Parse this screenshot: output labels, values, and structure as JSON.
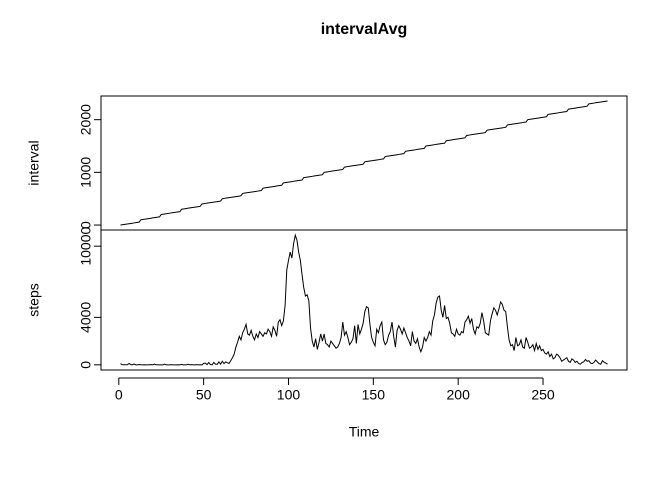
{
  "chart_data": {
    "type": "line",
    "title": "intervalAvg",
    "xlabel": "Time",
    "xlim": [
      -10.48,
      299.48
    ],
    "xticks": [
      0,
      50,
      100,
      150,
      200,
      250
    ],
    "color": "#000000",
    "x": [
      1,
      2,
      3,
      4,
      5,
      6,
      7,
      8,
      9,
      10,
      11,
      12,
      13,
      14,
      15,
      16,
      17,
      18,
      19,
      20,
      21,
      22,
      23,
      24,
      25,
      26,
      27,
      28,
      29,
      30,
      31,
      32,
      33,
      34,
      35,
      36,
      37,
      38,
      39,
      40,
      41,
      42,
      43,
      44,
      45,
      46,
      47,
      48,
      49,
      50,
      51,
      52,
      53,
      54,
      55,
      56,
      57,
      58,
      59,
      60,
      61,
      62,
      63,
      64,
      65,
      66,
      67,
      68,
      69,
      70,
      71,
      72,
      73,
      74,
      75,
      76,
      77,
      78,
      79,
      80,
      81,
      82,
      83,
      84,
      85,
      86,
      87,
      88,
      89,
      90,
      91,
      92,
      93,
      94,
      95,
      96,
      97,
      98,
      99,
      100,
      101,
      102,
      103,
      104,
      105,
      106,
      107,
      108,
      109,
      110,
      111,
      112,
      113,
      114,
      115,
      116,
      117,
      118,
      119,
      120,
      121,
      122,
      123,
      124,
      125,
      126,
      127,
      128,
      129,
      130,
      131,
      132,
      133,
      134,
      135,
      136,
      137,
      138,
      139,
      140,
      141,
      142,
      143,
      144,
      145,
      146,
      147,
      148,
      149,
      150,
      151,
      152,
      153,
      154,
      155,
      156,
      157,
      158,
      159,
      160,
      161,
      162,
      163,
      164,
      165,
      166,
      167,
      168,
      169,
      170,
      171,
      172,
      173,
      174,
      175,
      176,
      177,
      178,
      179,
      180,
      181,
      182,
      183,
      184,
      185,
      186,
      187,
      188,
      189,
      190,
      191,
      192,
      193,
      194,
      195,
      196,
      197,
      198,
      199,
      200,
      201,
      202,
      203,
      204,
      205,
      206,
      207,
      208,
      209,
      210,
      211,
      212,
      213,
      214,
      215,
      216,
      217,
      218,
      219,
      220,
      221,
      222,
      223,
      224,
      225,
      226,
      227,
      228,
      229,
      230,
      231,
      232,
      233,
      234,
      235,
      236,
      237,
      238,
      239,
      240,
      241,
      242,
      243,
      244,
      245,
      246,
      247,
      248,
      249,
      250,
      251,
      252,
      253,
      254,
      255,
      256,
      257,
      258,
      259,
      260,
      261,
      262,
      263,
      264,
      265,
      266,
      267,
      268,
      269,
      270,
      271,
      272,
      273,
      274,
      275,
      276,
      277,
      278,
      279,
      280,
      281,
      282,
      283,
      284,
      285,
      286,
      287,
      288
    ],
    "panels": [
      {
        "ylabel": "interval",
        "ylim": [
          -94,
          2449
        ],
        "yticks": [
          0,
          1000,
          2000
        ],
        "values": [
          0,
          5,
          10,
          15,
          20,
          25,
          30,
          35,
          40,
          45,
          50,
          55,
          100,
          105,
          110,
          115,
          120,
          125,
          130,
          135,
          140,
          145,
          150,
          155,
          200,
          205,
          210,
          215,
          220,
          225,
          230,
          235,
          240,
          245,
          250,
          255,
          300,
          305,
          310,
          315,
          320,
          325,
          330,
          335,
          340,
          345,
          350,
          355,
          400,
          405,
          410,
          415,
          420,
          425,
          430,
          435,
          440,
          445,
          450,
          455,
          500,
          505,
          510,
          515,
          520,
          525,
          530,
          535,
          540,
          545,
          550,
          555,
          600,
          605,
          610,
          615,
          620,
          625,
          630,
          635,
          640,
          645,
          650,
          655,
          700,
          705,
          710,
          715,
          720,
          725,
          730,
          735,
          740,
          745,
          750,
          755,
          800,
          805,
          810,
          815,
          820,
          825,
          830,
          835,
          840,
          845,
          850,
          855,
          900,
          905,
          910,
          915,
          920,
          925,
          930,
          935,
          940,
          945,
          950,
          955,
          1000,
          1005,
          1010,
          1015,
          1020,
          1025,
          1030,
          1035,
          1040,
          1045,
          1050,
          1055,
          1100,
          1105,
          1110,
          1115,
          1120,
          1125,
          1130,
          1135,
          1140,
          1145,
          1150,
          1155,
          1200,
          1205,
          1210,
          1215,
          1220,
          1225,
          1230,
          1235,
          1240,
          1245,
          1250,
          1255,
          1300,
          1305,
          1310,
          1315,
          1320,
          1325,
          1330,
          1335,
          1340,
          1345,
          1350,
          1355,
          1400,
          1405,
          1410,
          1415,
          1420,
          1425,
          1430,
          1435,
          1440,
          1445,
          1450,
          1455,
          1500,
          1505,
          1510,
          1515,
          1520,
          1525,
          1530,
          1535,
          1540,
          1545,
          1550,
          1555,
          1600,
          1605,
          1610,
          1615,
          1620,
          1625,
          1630,
          1635,
          1640,
          1645,
          1650,
          1655,
          1700,
          1705,
          1710,
          1715,
          1720,
          1725,
          1730,
          1735,
          1740,
          1745,
          1750,
          1755,
          1800,
          1805,
          1810,
          1815,
          1820,
          1825,
          1830,
          1835,
          1840,
          1845,
          1850,
          1855,
          1900,
          1905,
          1910,
          1915,
          1920,
          1925,
          1930,
          1935,
          1940,
          1945,
          1950,
          1955,
          2000,
          2005,
          2010,
          2015,
          2020,
          2025,
          2030,
          2035,
          2040,
          2045,
          2050,
          2055,
          2100,
          2105,
          2110,
          2115,
          2120,
          2125,
          2130,
          2135,
          2140,
          2145,
          2150,
          2155,
          2200,
          2205,
          2210,
          2215,
          2220,
          2225,
          2230,
          2235,
          2240,
          2245,
          2250,
          2255,
          2300,
          2305,
          2310,
          2315,
          2320,
          2325,
          2330,
          2335,
          2340,
          2345,
          2350,
          2355
        ]
      },
      {
        "ylabel": "steps",
        "ylim": [
          -437,
          11364
        ],
        "yticks": [
          0,
          4000,
          10000
        ],
        "values": [
          91,
          18,
          7,
          8,
          4,
          111,
          28,
          0,
          78,
          0,
          0,
          25,
          9,
          0,
          10,
          0,
          0,
          10,
          20,
          0,
          65,
          5,
          10,
          0,
          0,
          0,
          58,
          0,
          0,
          0,
          20,
          0,
          0,
          0,
          5,
          0,
          35,
          0,
          0,
          10,
          50,
          0,
          20,
          0,
          0,
          12,
          0,
          3,
          0,
          120,
          140,
          15,
          190,
          25,
          0,
          200,
          60,
          40,
          250,
          50,
          300,
          100,
          250,
          170,
          120,
          350,
          600,
          900,
          1500,
          1900,
          2400,
          2100,
          2700,
          3000,
          3400,
          2600,
          2500,
          2900,
          2400,
          2100,
          2600,
          2300,
          2800,
          2600,
          2400,
          2700,
          2600,
          3000,
          2800,
          2400,
          3200,
          2900,
          2400,
          3600,
          3800,
          3300,
          3700,
          5000,
          8000,
          8800,
          9500,
          9000,
          10200,
          10927,
          10500,
          9500,
          8800,
          7600,
          6500,
          5800,
          5900,
          5400,
          3100,
          2000,
          1500,
          2200,
          1300,
          1900,
          2600,
          2000,
          2600,
          1800,
          1700,
          1500,
          2000,
          1800,
          1600,
          1400,
          1500,
          1800,
          2300,
          3600,
          2500,
          2800,
          2300,
          1700,
          1900,
          2200,
          3300,
          1800,
          3400,
          2600,
          3000,
          3500,
          4500,
          4900,
          4800,
          3400,
          2300,
          1900,
          1600,
          3000,
          2700,
          3300,
          3600,
          2100,
          1700,
          1900,
          2500,
          2800,
          3600,
          2400,
          1500,
          2900,
          3300,
          3000,
          2600,
          3100,
          2700,
          2300,
          2000,
          1600,
          2800,
          2000,
          1800,
          2200,
          1500,
          1100,
          1500,
          2300,
          2000,
          2300,
          2800,
          2500,
          3700,
          4200,
          5200,
          5700,
          5800,
          4600,
          4000,
          5000,
          3900,
          4000,
          3500,
          2700,
          2600,
          2400,
          3000,
          2600,
          2500,
          2800,
          2700,
          3600,
          3800,
          4100,
          3500,
          3900,
          3000,
          2600,
          3200,
          3100,
          3500,
          4400,
          3700,
          2700,
          2600,
          2500,
          3700,
          4300,
          4800,
          4600,
          4200,
          4700,
          5300,
          5100,
          4600,
          4500,
          3200,
          2100,
          1600,
          1700,
          1200,
          2300,
          1600,
          1700,
          2100,
          1500,
          1400,
          2300,
          1900,
          1400,
          1500,
          1700,
          1200,
          1800,
          1300,
          1600,
          1200,
          1300,
          1000,
          900,
          1100,
          700,
          900,
          500,
          600,
          900,
          800,
          600,
          300,
          400,
          500,
          600,
          300,
          200,
          500,
          400,
          200,
          300,
          100,
          50,
          200,
          250,
          450,
          300,
          350,
          150,
          100,
          200,
          400,
          250,
          100,
          50,
          350,
          220,
          150,
          50
        ]
      }
    ]
  }
}
